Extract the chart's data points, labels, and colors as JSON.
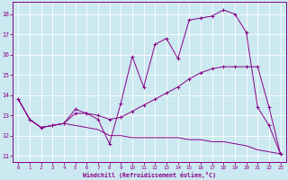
{
  "xlabel": "Windchill (Refroidissement éolien,°C)",
  "bg_color": "#cce8f0",
  "grid_color": "#aaccdd",
  "line_color": "#880088",
  "xlim": [
    -0.5,
    23.5
  ],
  "ylim": [
    10.7,
    18.6
  ],
  "yticks": [
    11,
    12,
    13,
    14,
    15,
    16,
    17,
    18
  ],
  "xticks": [
    0,
    1,
    2,
    3,
    4,
    5,
    6,
    7,
    8,
    9,
    10,
    11,
    12,
    13,
    14,
    15,
    16,
    17,
    18,
    19,
    20,
    21,
    22,
    23
  ],
  "line1_x": [
    0,
    1,
    2,
    3,
    4,
    5,
    6,
    7,
    8,
    9,
    10,
    11,
    12,
    13,
    14,
    15,
    16,
    17,
    18,
    19,
    20,
    21,
    22,
    23
  ],
  "line1_y": [
    13.8,
    12.8,
    12.4,
    12.5,
    12.6,
    13.3,
    13.1,
    12.8,
    11.6,
    13.6,
    15.9,
    14.4,
    16.5,
    16.8,
    15.8,
    17.7,
    17.8,
    17.9,
    18.2,
    18.0,
    17.1,
    13.4,
    12.5,
    11.1
  ],
  "line2_x": [
    0,
    1,
    2,
    3,
    4,
    5,
    6,
    7,
    8,
    9,
    10,
    11,
    12,
    13,
    14,
    15,
    16,
    17,
    18,
    19,
    20,
    21,
    22,
    23
  ],
  "line2_y": [
    13.8,
    12.8,
    12.4,
    12.5,
    12.6,
    12.5,
    12.4,
    12.3,
    12.0,
    12.0,
    11.9,
    11.9,
    11.9,
    11.9,
    11.9,
    11.8,
    11.8,
    11.7,
    11.7,
    11.6,
    11.5,
    11.3,
    11.2,
    11.1
  ],
  "line3_x": [
    0,
    1,
    2,
    3,
    4,
    5,
    6,
    7,
    8,
    9,
    10,
    11,
    12,
    13,
    14,
    15,
    16,
    17,
    18,
    19,
    20,
    21,
    22,
    23
  ],
  "line3_y": [
    13.8,
    12.8,
    12.4,
    12.5,
    12.6,
    13.1,
    13.1,
    13.0,
    12.8,
    12.9,
    13.2,
    13.5,
    13.8,
    14.1,
    14.4,
    14.8,
    15.1,
    15.3,
    15.4,
    15.4,
    15.4,
    15.4,
    13.4,
    11.1
  ]
}
